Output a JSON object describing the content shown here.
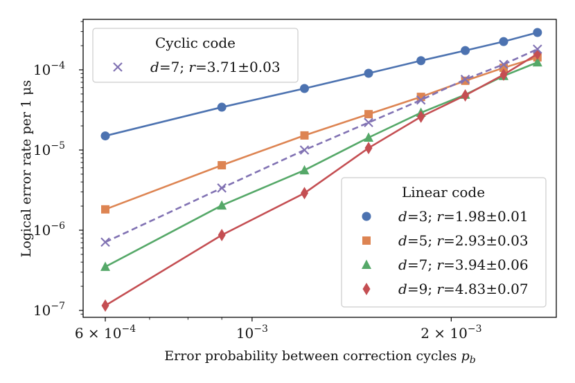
{
  "chart_data": {
    "type": "line",
    "xlabel": "Error probability between correction cycles p_b",
    "xlabel_main": "Error probability between correction cycles ",
    "xlabel_var": "p",
    "xlabel_sub": "b",
    "ylabel": "Logical error rate per 1 μs",
    "xscale": "log",
    "yscale": "log",
    "xlim": [
      0.000555,
      0.00288
    ],
    "ylim": [
      8.2e-08,
      0.00043
    ],
    "grid": false,
    "x_ticks": [
      {
        "value": 0.0006,
        "mant": "6 × 10",
        "exp": "−4"
      },
      {
        "value": 0.001,
        "mant": "10",
        "exp": "−3"
      },
      {
        "value": 0.002,
        "mant": "2 × 10",
        "exp": "−3"
      }
    ],
    "y_ticks": [
      {
        "value": 0.0001,
        "mant": "10",
        "exp": "−4"
      },
      {
        "value": 1e-05,
        "mant": "10",
        "exp": "−5"
      },
      {
        "value": 1e-06,
        "mant": "10",
        "exp": "−6"
      },
      {
        "value": 1e-07,
        "mant": "10",
        "exp": "−7"
      }
    ],
    "x": [
      0.0006,
      0.0009,
      0.0012,
      0.0015,
      0.0018,
      0.0021,
      0.0024,
      0.0027
    ],
    "legends": [
      {
        "title": "Cyclic code",
        "placement": "upper-left",
        "series": [
          "cyclic-d7"
        ]
      },
      {
        "title": "Linear code",
        "placement": "lower-right",
        "series": [
          "linear-d3",
          "linear-d5",
          "linear-d7",
          "linear-d9"
        ]
      }
    ],
    "series": [
      {
        "id": "linear-d3",
        "name": "d=3; r=1.98±0.01",
        "d": "3",
        "r": "1.98±0.01",
        "color": "#4c72b0",
        "marker": "circle",
        "dashed": false,
        "values": [
          1.5e-05,
          3.42e-05,
          5.85e-05,
          9.05e-05,
          0.00013,
          0.000174,
          0.000225,
          0.000292
        ]
      },
      {
        "id": "linear-d5",
        "name": "d=5; r=2.93±0.03",
        "d": "5",
        "r": "2.93±0.03",
        "color": "#dd8452",
        "marker": "square",
        "dashed": false,
        "values": [
          1.82e-06,
          6.46e-06,
          1.52e-05,
          2.8e-05,
          4.6e-05,
          7.3e-05,
          0.000106,
          0.000143
        ]
      },
      {
        "id": "linear-d7",
        "name": "d=7; r=3.94±0.06",
        "d": "7",
        "r": "3.94±0.06",
        "color": "#55a868",
        "marker": "triangle",
        "dashed": false,
        "values": [
          3.5e-07,
          2.04e-06,
          5.6e-06,
          1.43e-05,
          2.92e-05,
          4.9e-05,
          8.4e-05,
          0.000124
        ]
      },
      {
        "id": "linear-d9",
        "name": "d=9; r=4.83±0.07",
        "d": "9",
        "r": "4.83±0.07",
        "color": "#c44e52",
        "marker": "diamond",
        "dashed": false,
        "values": [
          1.15e-07,
          8.7e-07,
          2.9e-06,
          1.06e-05,
          2.6e-05,
          4.8e-05,
          8.7e-05,
          0.000158
        ]
      },
      {
        "id": "cyclic-d7",
        "name": "d=7; r=3.71±0.03",
        "d": "7",
        "r": "3.71±0.03",
        "color": "#8172b3",
        "marker": "x",
        "dashed": true,
        "values": [
          7.1e-07,
          3.36e-06,
          1e-05,
          2.2e-05,
          4.2e-05,
          7.6e-05,
          0.000117,
          0.000181
        ]
      }
    ]
  }
}
